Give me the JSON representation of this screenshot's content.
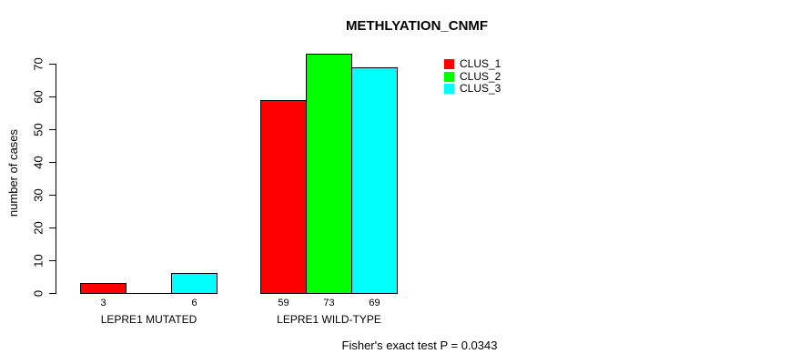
{
  "title": "METHLYATION_CNMF",
  "footer": "Fisher's exact test P = 0.0343",
  "chart_data": {
    "type": "bar",
    "title": "METHLYATION_CNMF",
    "xlabel": "",
    "ylabel": "number of cases",
    "ylim": [
      0,
      73
    ],
    "yticks": [
      0,
      10,
      20,
      30,
      40,
      50,
      60,
      70
    ],
    "categories": [
      "LEPRE1 MUTATED",
      "LEPRE1 WILD-TYPE"
    ],
    "series": [
      {
        "name": "CLUS_1",
        "color": "#ff0000",
        "values": [
          3,
          59
        ]
      },
      {
        "name": "CLUS_2",
        "color": "#00ff00",
        "values": [
          0,
          73
        ]
      },
      {
        "name": "CLUS_3",
        "color": "#00ffff",
        "values": [
          6,
          69
        ]
      }
    ],
    "bar_value_labels": [
      [
        "3",
        "",
        "6"
      ],
      [
        "59",
        "73",
        "69"
      ]
    ],
    "legend": [
      "CLUS_1",
      "CLUS_2",
      "CLUS_3"
    ],
    "legend_position": "top-right",
    "grid": false,
    "annotation": "Fisher's exact test P = 0.0343",
    "axis_color": "#000000",
    "background_color": "#ffffff"
  }
}
